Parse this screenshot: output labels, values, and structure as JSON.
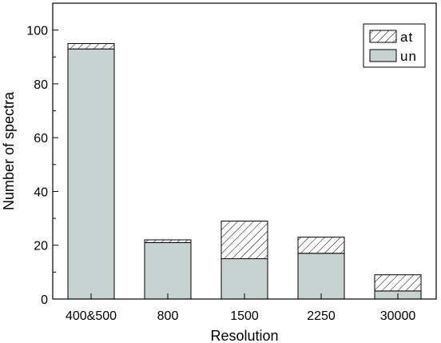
{
  "chart_data": {
    "type": "bar",
    "stacked": true,
    "categories": [
      "400&500",
      "800",
      "1500",
      "2250",
      "30000"
    ],
    "series": [
      {
        "name": "un",
        "values": [
          93,
          21,
          15,
          17,
          3
        ],
        "fill": "#c8d2d0",
        "pattern": "solid"
      },
      {
        "name": "at",
        "values": [
          2,
          1,
          14,
          6,
          6
        ],
        "fill": "#ffffff",
        "pattern": "diagonal-hatch"
      }
    ],
    "title": "",
    "xlabel": "Resolution",
    "ylabel": "Number of  spectra",
    "ylim": [
      0,
      110
    ],
    "yticks": [
      0,
      20,
      40,
      60,
      80,
      100
    ],
    "grid": false,
    "legend": {
      "position": "top-right",
      "order": [
        "at",
        "un"
      ]
    }
  }
}
